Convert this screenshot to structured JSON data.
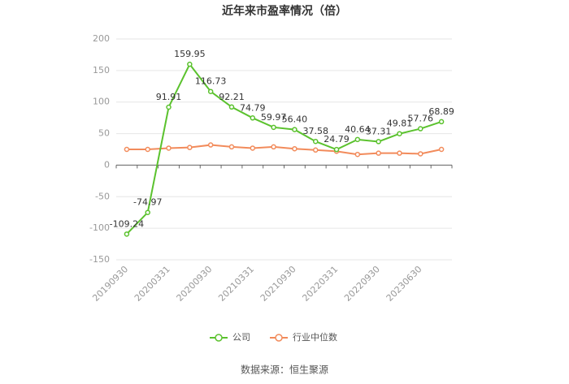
{
  "chart_data": {
    "type": "line",
    "title": "近年来市盈率情况（倍）",
    "categories": [
      "20190930",
      null,
      "20200331",
      null,
      "20200930",
      null,
      "20210331",
      null,
      "20210930",
      null,
      "20220331",
      null,
      "20220930",
      null,
      "20230630",
      null
    ],
    "series": [
      {
        "name": "公司",
        "color": "#5bc22e",
        "values": [
          -109.24,
          -74.97,
          91.91,
          159.95,
          116.73,
          92.21,
          74.79,
          59.97,
          56.4,
          37.58,
          24.79,
          40.64,
          37.31,
          49.81,
          57.76,
          68.89
        ],
        "value_labels": [
          "-109.24",
          "-74.97",
          "91.91",
          "159.95",
          "116.73",
          "92.21",
          "74.79",
          "59.97",
          "56.40",
          "37.58",
          "24.79",
          "40.64",
          "37.31",
          "49.81",
          "57.76",
          "68.89"
        ]
      },
      {
        "name": "行业中位数",
        "color": "#f28b5b",
        "values": [
          25,
          25,
          27,
          28,
          32,
          29,
          27,
          29,
          26,
          24,
          22,
          17,
          19,
          19,
          18,
          25
        ]
      }
    ],
    "ylim": [
      -150,
      200
    ],
    "yticks": [
      -150,
      -100,
      -50,
      0,
      50,
      100,
      150,
      200
    ],
    "grid": true,
    "legend": "bottom",
    "source": "数据来源：恒生聚源"
  }
}
